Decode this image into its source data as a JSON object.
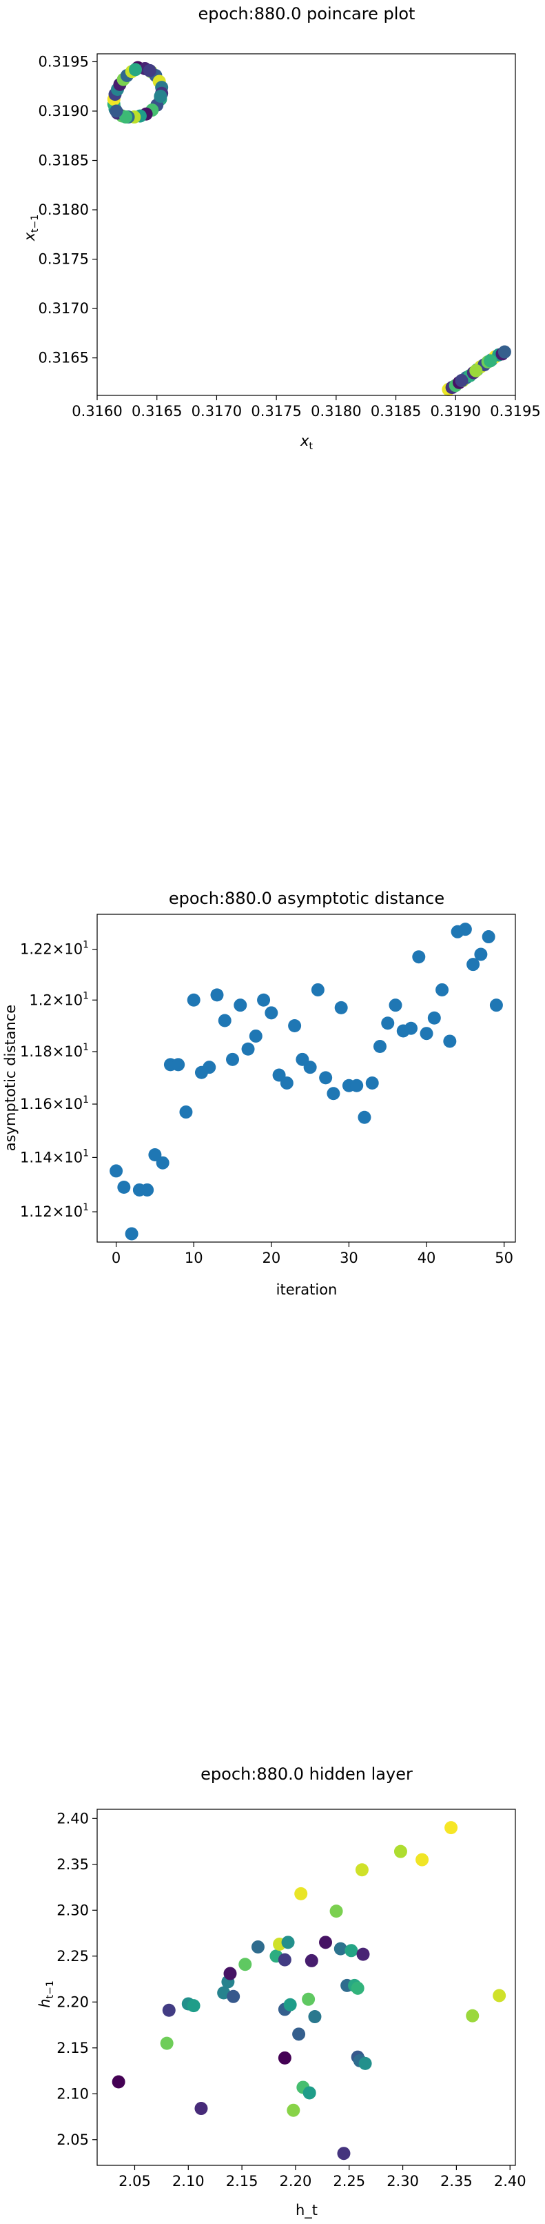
{
  "chart_data": [
    {
      "type": "scatter",
      "title": "epoch:880.0 poincare plot",
      "xlabel": "x_t",
      "ylabel": "x_{t-1}",
      "xlim": [
        0.316,
        0.3195
      ],
      "ylim": [
        0.31612,
        0.31958
      ],
      "xticks": [
        0.316,
        0.3165,
        0.317,
        0.3175,
        0.318,
        0.3185,
        0.319,
        0.3195
      ],
      "xtick_labels": [
        "0.3160",
        "0.3165",
        "0.3170",
        "0.3175",
        "0.3180",
        "0.3185",
        "0.3190",
        "0.3195"
      ],
      "yticks": [
        0.3165,
        0.317,
        0.3175,
        0.318,
        0.3185,
        0.319,
        0.3195
      ],
      "ytick_labels": [
        "0.3165",
        "0.3170",
        "0.3175",
        "0.3180",
        "0.3185",
        "0.3190",
        "0.3195"
      ],
      "colormap": "viridis",
      "points": [
        {
          "x": 0.31634,
          "y": 0.31944,
          "c": 0.02
        },
        {
          "x": 0.3164,
          "y": 0.31943,
          "c": 0.1
        },
        {
          "x": 0.31645,
          "y": 0.3194,
          "c": 0.85
        },
        {
          "x": 0.31649,
          "y": 0.31936,
          "c": 0.3
        },
        {
          "x": 0.31652,
          "y": 0.3193,
          "c": 0.95
        },
        {
          "x": 0.31654,
          "y": 0.31924,
          "c": 0.4
        },
        {
          "x": 0.31654,
          "y": 0.31918,
          "c": 0.15
        },
        {
          "x": 0.31653,
          "y": 0.31912,
          "c": 0.6
        },
        {
          "x": 0.3165,
          "y": 0.31906,
          "c": 0.25
        },
        {
          "x": 0.31646,
          "y": 0.31901,
          "c": 0.7
        },
        {
          "x": 0.31641,
          "y": 0.31897,
          "c": 0.05
        },
        {
          "x": 0.31636,
          "y": 0.31895,
          "c": 0.55
        },
        {
          "x": 0.31631,
          "y": 0.31894,
          "c": 0.9
        },
        {
          "x": 0.31626,
          "y": 0.31894,
          "c": 0.35
        },
        {
          "x": 0.31621,
          "y": 0.31895,
          "c": 0.75
        },
        {
          "x": 0.31617,
          "y": 0.31898,
          "c": 0.12
        },
        {
          "x": 0.31615,
          "y": 0.31902,
          "c": 0.5
        },
        {
          "x": 0.31614,
          "y": 0.31907,
          "c": 0.65
        },
        {
          "x": 0.31614,
          "y": 0.31912,
          "c": 0.98
        },
        {
          "x": 0.31615,
          "y": 0.31917,
          "c": 0.2
        },
        {
          "x": 0.31617,
          "y": 0.31922,
          "c": 0.45
        },
        {
          "x": 0.31619,
          "y": 0.31927,
          "c": 0.08
        },
        {
          "x": 0.31622,
          "y": 0.31932,
          "c": 0.8
        },
        {
          "x": 0.31625,
          "y": 0.31936,
          "c": 0.33
        },
        {
          "x": 0.31629,
          "y": 0.3194,
          "c": 0.92
        },
        {
          "x": 0.31632,
          "y": 0.31942,
          "c": 0.6
        },
        {
          "x": 0.31644,
          "y": 0.31941,
          "c": 0.18
        },
        {
          "x": 0.31653,
          "y": 0.31915,
          "c": 0.45
        },
        {
          "x": 0.31624,
          "y": 0.31894,
          "c": 0.68
        },
        {
          "x": 0.31616,
          "y": 0.319,
          "c": 0.28
        },
        {
          "x": 0.31894,
          "y": 0.31618,
          "c": 0.97
        },
        {
          "x": 0.31897,
          "y": 0.3162,
          "c": 0.15
        },
        {
          "x": 0.319,
          "y": 0.31622,
          "c": 0.7
        },
        {
          "x": 0.31903,
          "y": 0.31625,
          "c": 0.05
        },
        {
          "x": 0.31906,
          "y": 0.31627,
          "c": 0.88
        },
        {
          "x": 0.31909,
          "y": 0.3163,
          "c": 0.35
        },
        {
          "x": 0.31912,
          "y": 0.31632,
          "c": 0.62
        },
        {
          "x": 0.31915,
          "y": 0.31635,
          "c": 0.12
        },
        {
          "x": 0.31918,
          "y": 0.31638,
          "c": 0.48
        },
        {
          "x": 0.31921,
          "y": 0.31641,
          "c": 0.93
        },
        {
          "x": 0.31924,
          "y": 0.31643,
          "c": 0.22
        },
        {
          "x": 0.31927,
          "y": 0.31646,
          "c": 0.78
        },
        {
          "x": 0.3193,
          "y": 0.31648,
          "c": 0.4
        },
        {
          "x": 0.31933,
          "y": 0.31651,
          "c": 0.99
        },
        {
          "x": 0.31936,
          "y": 0.31653,
          "c": 0.55
        },
        {
          "x": 0.31939,
          "y": 0.31654,
          "c": 0.08
        },
        {
          "x": 0.31941,
          "y": 0.31656,
          "c": 0.3
        },
        {
          "x": 0.31905,
          "y": 0.31627,
          "c": 0.2
        },
        {
          "x": 0.31917,
          "y": 0.31637,
          "c": 0.85
        },
        {
          "x": 0.31929,
          "y": 0.31647,
          "c": 0.65
        }
      ]
    },
    {
      "type": "scatter",
      "title": "epoch:880.0 asymptotic distance",
      "xlabel": "iteration",
      "ylabel": "asymptotic distance",
      "yscale": "log",
      "xlim": [
        -2.45,
        51.45
      ],
      "ylim": [
        11.09,
        12.34
      ],
      "xticks": [
        0,
        10,
        20,
        30,
        40,
        50
      ],
      "yticks": [
        11.2,
        11.4,
        11.6,
        11.8,
        12.0,
        12.2
      ],
      "ytick_bases": [
        "1.12",
        "1.14",
        "1.16",
        "1.18",
        "1.2",
        "1.22"
      ],
      "ytick_times": "×10",
      "ytick_exponent": "1",
      "marker_color": "#1f77b4",
      "x": [
        0,
        1,
        2,
        3,
        4,
        5,
        6,
        7,
        8,
        9,
        10,
        11,
        12,
        13,
        14,
        15,
        16,
        17,
        18,
        19,
        20,
        21,
        22,
        23,
        24,
        25,
        26,
        27,
        28,
        29,
        30,
        31,
        32,
        33,
        34,
        35,
        36,
        37,
        38,
        39,
        40,
        41,
        42,
        43,
        44,
        45,
        46,
        47,
        48,
        49
      ],
      "values": [
        11.35,
        11.29,
        11.12,
        11.28,
        11.28,
        11.41,
        11.38,
        11.75,
        11.75,
        11.57,
        12.0,
        11.72,
        11.74,
        12.02,
        11.92,
        11.77,
        11.98,
        11.81,
        11.86,
        12.0,
        11.95,
        11.71,
        11.68,
        11.9,
        11.77,
        11.74,
        12.04,
        11.7,
        11.64,
        11.97,
        11.67,
        11.67,
        11.55,
        11.68,
        11.82,
        11.91,
        11.98,
        11.88,
        11.89,
        12.17,
        11.87,
        11.93,
        12.04,
        11.84,
        12.27,
        12.28,
        12.14,
        12.18,
        12.25,
        11.98
      ]
    },
    {
      "type": "scatter",
      "title": "epoch:880.0 hidden layer",
      "xlabel": "h_t",
      "ylabel": "h_{t-1}",
      "xlim": [
        2.015,
        2.405
      ],
      "ylim": [
        2.022,
        2.41
      ],
      "xticks": [
        2.05,
        2.1,
        2.15,
        2.2,
        2.25,
        2.3,
        2.35,
        2.4
      ],
      "xtick_labels": [
        "2.05",
        "2.10",
        "2.15",
        "2.20",
        "2.25",
        "2.30",
        "2.35",
        "2.40"
      ],
      "yticks": [
        2.05,
        2.1,
        2.15,
        2.2,
        2.25,
        2.3,
        2.35,
        2.4
      ],
      "ytick_labels": [
        "2.05",
        "2.10",
        "2.15",
        "2.20",
        "2.25",
        "2.30",
        "2.35",
        "2.40"
      ],
      "colormap": "viridis",
      "points": [
        {
          "x": 2.035,
          "y": 2.113,
          "c": 0.0
        },
        {
          "x": 2.08,
          "y": 2.155,
          "c": 0.78
        },
        {
          "x": 2.082,
          "y": 2.191,
          "c": 0.18
        },
        {
          "x": 2.1,
          "y": 2.198,
          "c": 0.5
        },
        {
          "x": 2.105,
          "y": 2.196,
          "c": 0.55
        },
        {
          "x": 2.112,
          "y": 2.084,
          "c": 0.12
        },
        {
          "x": 2.133,
          "y": 2.21,
          "c": 0.45
        },
        {
          "x": 2.137,
          "y": 2.222,
          "c": 0.45
        },
        {
          "x": 2.139,
          "y": 2.231,
          "c": 0.05
        },
        {
          "x": 2.142,
          "y": 2.206,
          "c": 0.28
        },
        {
          "x": 2.153,
          "y": 2.241,
          "c": 0.75
        },
        {
          "x": 2.165,
          "y": 2.26,
          "c": 0.35
        },
        {
          "x": 2.182,
          "y": 2.25,
          "c": 0.62
        },
        {
          "x": 2.185,
          "y": 2.263,
          "c": 0.93
        },
        {
          "x": 2.19,
          "y": 2.246,
          "c": 0.18
        },
        {
          "x": 2.19,
          "y": 2.192,
          "c": 0.3
        },
        {
          "x": 2.19,
          "y": 2.139,
          "c": 0.0
        },
        {
          "x": 2.193,
          "y": 2.265,
          "c": 0.5
        },
        {
          "x": 2.195,
          "y": 2.197,
          "c": 0.55
        },
        {
          "x": 2.198,
          "y": 2.082,
          "c": 0.82
        },
        {
          "x": 2.203,
          "y": 2.165,
          "c": 0.3
        },
        {
          "x": 2.205,
          "y": 2.318,
          "c": 0.97
        },
        {
          "x": 2.207,
          "y": 2.107,
          "c": 0.7
        },
        {
          "x": 2.212,
          "y": 2.203,
          "c": 0.75
        },
        {
          "x": 2.213,
          "y": 2.101,
          "c": 0.55
        },
        {
          "x": 2.215,
          "y": 2.245,
          "c": 0.08
        },
        {
          "x": 2.218,
          "y": 2.184,
          "c": 0.4
        },
        {
          "x": 2.228,
          "y": 2.265,
          "c": 0.05
        },
        {
          "x": 2.238,
          "y": 2.299,
          "c": 0.8
        },
        {
          "x": 2.242,
          "y": 2.258,
          "c": 0.38
        },
        {
          "x": 2.245,
          "y": 2.035,
          "c": 0.15
        },
        {
          "x": 2.248,
          "y": 2.218,
          "c": 0.35
        },
        {
          "x": 2.252,
          "y": 2.256,
          "c": 0.58
        },
        {
          "x": 2.255,
          "y": 2.218,
          "c": 0.6
        },
        {
          "x": 2.258,
          "y": 2.215,
          "c": 0.65
        },
        {
          "x": 2.258,
          "y": 2.14,
          "c": 0.28
        },
        {
          "x": 2.26,
          "y": 2.136,
          "c": 0.35
        },
        {
          "x": 2.262,
          "y": 2.344,
          "c": 0.93
        },
        {
          "x": 2.263,
          "y": 2.252,
          "c": 0.1
        },
        {
          "x": 2.265,
          "y": 2.133,
          "c": 0.5
        },
        {
          "x": 2.298,
          "y": 2.364,
          "c": 0.88
        },
        {
          "x": 2.318,
          "y": 2.355,
          "c": 0.98
        },
        {
          "x": 2.345,
          "y": 2.39,
          "c": 0.99
        },
        {
          "x": 2.365,
          "y": 2.185,
          "c": 0.85
        },
        {
          "x": 2.39,
          "y": 2.207,
          "c": 0.93
        }
      ]
    }
  ]
}
